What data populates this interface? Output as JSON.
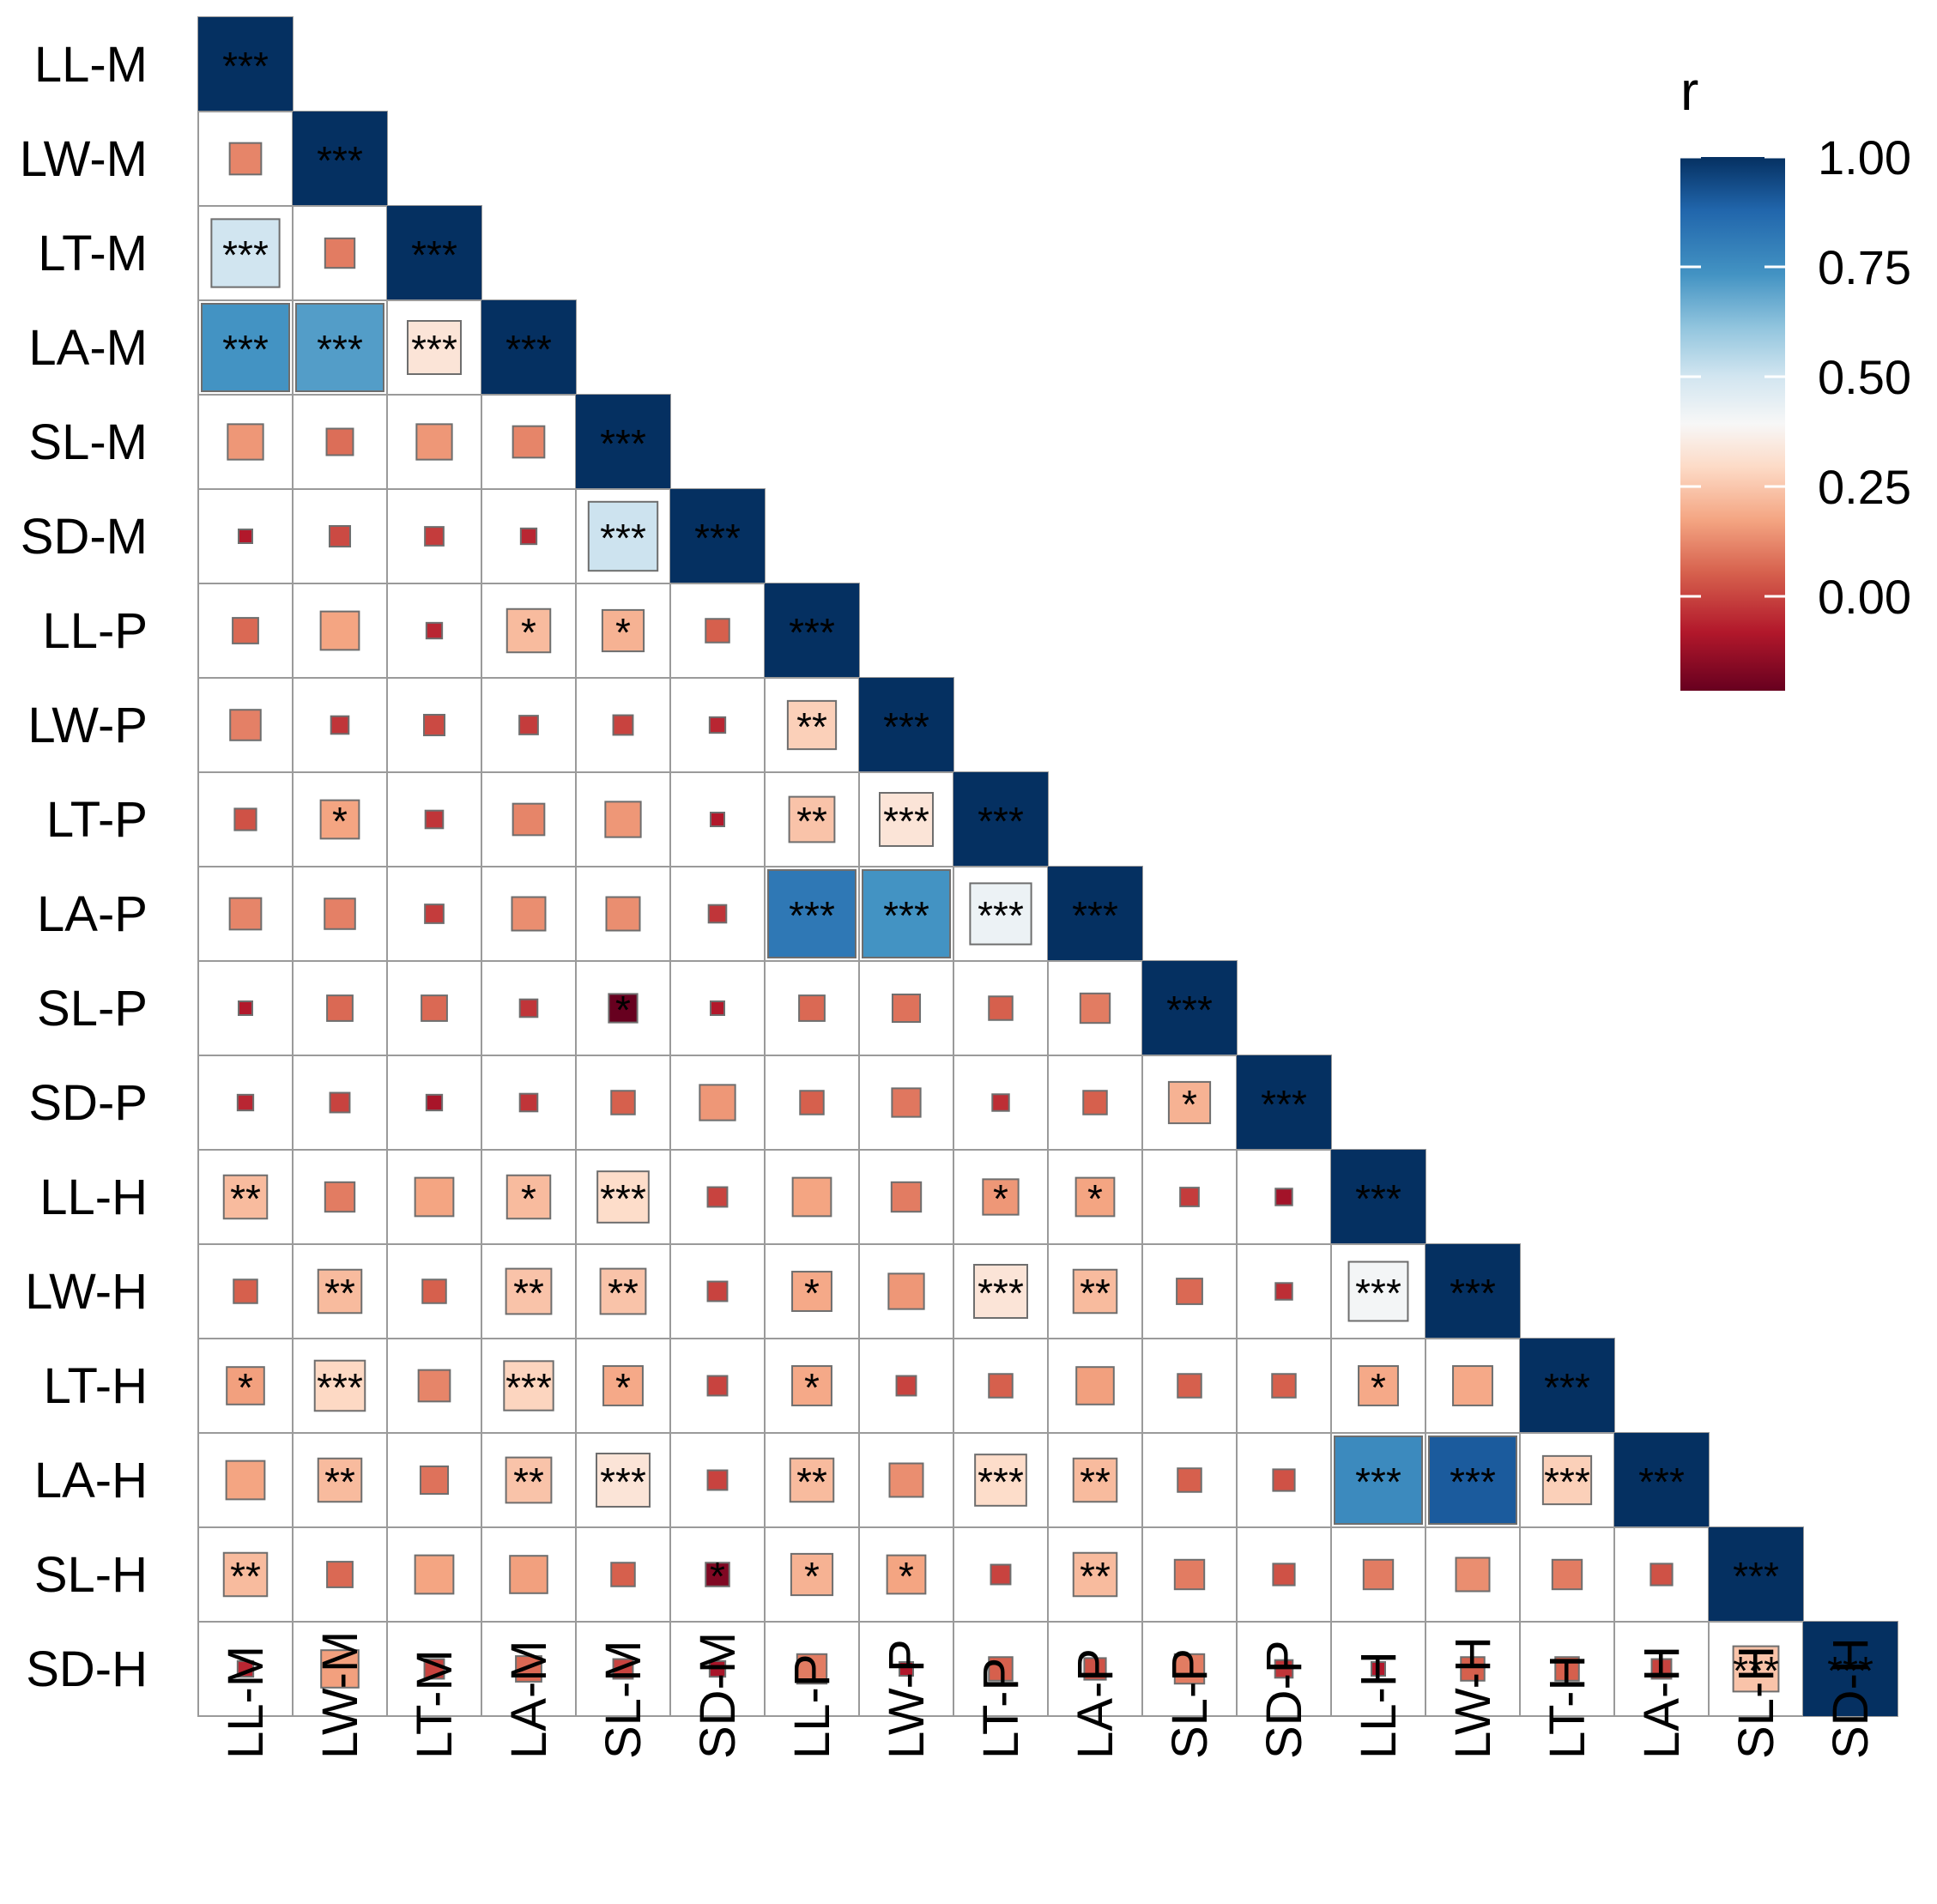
{
  "chart_data": {
    "type": "heatmap",
    "variables": [
      "LL-M",
      "LW-M",
      "LT-M",
      "LA-M",
      "SL-M",
      "SD-M",
      "LL-P",
      "LW-P",
      "LT-P",
      "LA-P",
      "SL-P",
      "SD-P",
      "LL-H",
      "LW-H",
      "LT-H",
      "LA-H",
      "SL-H",
      "SD-H"
    ],
    "r_lower_triangle": [
      [
        1.0
      ],
      [
        0.18,
        1.0
      ],
      [
        0.55,
        0.16,
        1.0
      ],
      [
        0.8,
        0.78,
        0.4,
        1.0
      ],
      [
        0.22,
        0.13,
        0.22,
        0.18,
        1.0
      ],
      [
        0.0,
        0.07,
        0.05,
        0.02,
        0.56,
        1.0
      ],
      [
        0.12,
        0.25,
        0.02,
        0.3,
        0.28,
        0.1,
        1.0
      ],
      [
        0.17,
        0.04,
        0.07,
        0.05,
        0.06,
        0.02,
        0.35,
        1.0
      ],
      [
        0.08,
        0.25,
        0.04,
        0.18,
        0.22,
        0.0,
        0.32,
        0.4,
        1.0
      ],
      [
        0.18,
        0.17,
        0.05,
        0.2,
        0.2,
        0.04,
        0.86,
        0.8,
        0.48,
        1.0
      ],
      [
        0.0,
        0.12,
        0.12,
        0.04,
        -0.15,
        0.0,
        0.12,
        0.14,
        0.1,
        0.16,
        1.0
      ],
      [
        0.02,
        0.06,
        -0.02,
        0.04,
        0.1,
        0.22,
        0.1,
        0.15,
        0.03,
        0.1,
        0.28,
        1.0
      ],
      [
        0.3,
        0.16,
        0.25,
        0.3,
        0.38,
        0.06,
        0.25,
        0.16,
        0.22,
        0.25,
        0.05,
        -0.03,
        1.0
      ],
      [
        0.1,
        0.3,
        0.1,
        0.32,
        0.32,
        0.06,
        0.26,
        0.22,
        0.4,
        0.3,
        0.12,
        0.03,
        0.46,
        1.0
      ],
      [
        0.24,
        0.37,
        0.18,
        0.36,
        0.26,
        0.06,
        0.26,
        0.06,
        0.1,
        0.24,
        0.1,
        0.1,
        0.26,
        0.26,
        1.0
      ],
      [
        0.25,
        0.3,
        0.14,
        0.32,
        0.4,
        0.06,
        0.3,
        0.2,
        0.38,
        0.3,
        0.1,
        0.08,
        0.82,
        0.92,
        0.35,
        1.0
      ],
      [
        0.3,
        0.12,
        0.25,
        0.24,
        0.1,
        -0.1,
        0.28,
        0.25,
        0.06,
        0.3,
        0.16,
        0.08,
        0.16,
        0.2,
        0.16,
        0.08,
        1.0
      ],
      [
        0.02,
        0.24,
        0.06,
        0.12,
        0.06,
        -0.02,
        0.16,
        0.0,
        0.1,
        0.08,
        0.16,
        0.04,
        0.0,
        0.1,
        0.1,
        0.06,
        0.32,
        1.0
      ]
    ],
    "significance_lower_triangle": [
      [
        "***"
      ],
      [
        "",
        "***"
      ],
      [
        "***",
        "",
        "***"
      ],
      [
        "***",
        "***",
        "***",
        "***"
      ],
      [
        "",
        "",
        "",
        "",
        "***"
      ],
      [
        "",
        "",
        "",
        "",
        "***",
        "***"
      ],
      [
        "",
        "",
        "",
        "*",
        "*",
        "",
        "***"
      ],
      [
        "",
        "",
        "",
        "",
        "",
        "",
        "**",
        "***"
      ],
      [
        "",
        "*",
        "",
        "",
        "",
        "",
        "**",
        "***",
        "***"
      ],
      [
        "",
        "",
        "",
        "",
        "",
        "",
        "***",
        "***",
        "***",
        "***"
      ],
      [
        "",
        "",
        "",
        "",
        "*",
        "",
        "",
        "",
        "",
        "",
        "***"
      ],
      [
        "",
        "",
        "",
        "",
        "",
        "",
        "",
        "",
        "",
        "",
        "*",
        "***"
      ],
      [
        "**",
        "",
        "",
        "*",
        "***",
        "",
        "",
        "",
        "*",
        "*",
        "",
        "",
        "***"
      ],
      [
        "",
        "**",
        "",
        "**",
        "**",
        "",
        "*",
        "",
        "***",
        "**",
        "",
        "",
        "***",
        "***"
      ],
      [
        "*",
        "***",
        "",
        "***",
        "*",
        "",
        "*",
        "",
        "",
        "",
        "",
        "",
        "*",
        "",
        "***"
      ],
      [
        "",
        "**",
        "",
        "**",
        "***",
        "",
        "**",
        "",
        "***",
        "**",
        "",
        "",
        "***",
        "***",
        "***",
        "***"
      ],
      [
        "**",
        "",
        "",
        "",
        "",
        "*",
        "*",
        "*",
        "",
        "**",
        "",
        "",
        "",
        "",
        "",
        "",
        "***"
      ],
      [
        "",
        "",
        "",
        "",
        "",
        "",
        "",
        "",
        "",
        "",
        "",
        "",
        "",
        "",
        "",
        "",
        "***",
        "***"
      ]
    ],
    "legend": {
      "title": "r",
      "tick_labels": [
        "1.00",
        "0.75",
        "0.50",
        "0.25",
        "0.00"
      ],
      "position": "top-right"
    },
    "color_scale": {
      "name": "RdBu",
      "low": "#67001f",
      "mid": "#f7f7f7",
      "high": "#053061"
    }
  }
}
